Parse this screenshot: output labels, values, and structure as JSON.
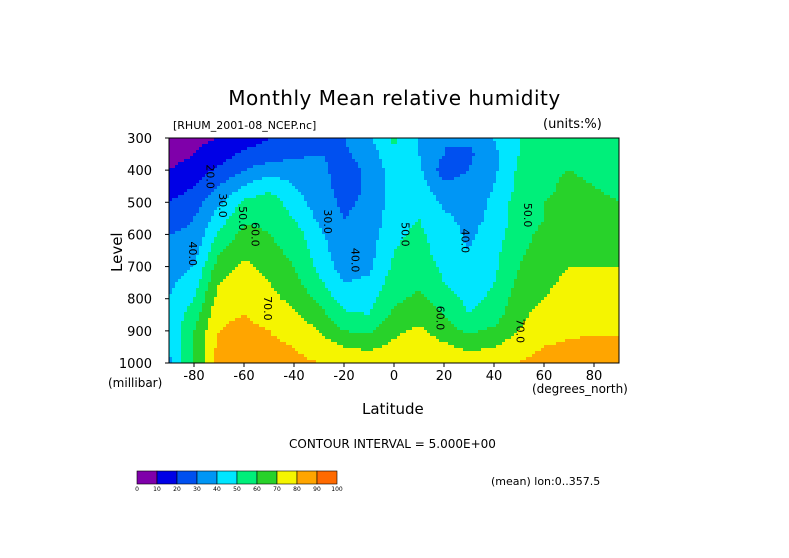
{
  "title": "Monthly Mean relative humidity",
  "file_label": "[RHUM_2001-08_NCEP.nc]",
  "units_label": "(units:%)",
  "contour_interval": "CONTOUR INTERVAL = 5.000E+00",
  "mean_label": "(mean) lon:0..357.5",
  "chart_data": {
    "type": "heatmap",
    "title": "Monthly Mean relative humidity",
    "xlabel": "Latitude",
    "ylabel": "Level",
    "x_unit": "(degrees_north)",
    "y_unit": "(millibar)",
    "xlim": [
      -90,
      90
    ],
    "ylim": [
      1000,
      300
    ],
    "x_ticks": [
      -80,
      -60,
      -40,
      -20,
      0,
      20,
      40,
      60,
      80
    ],
    "x_tick_labels": [
      "-80",
      "-60",
      "-40",
      "-20",
      "0",
      "20",
      "40",
      "60",
      "80"
    ],
    "y_ticks": [
      300,
      400,
      500,
      600,
      700,
      800,
      900,
      1000
    ],
    "y_tick_labels": [
      "300",
      "400",
      "500",
      "600",
      "700",
      "800",
      "900",
      "1000"
    ],
    "x": [
      -90,
      -80,
      -70,
      -60,
      -50,
      -40,
      -30,
      -20,
      -10,
      0,
      10,
      20,
      30,
      40,
      50,
      60,
      70,
      80,
      90
    ],
    "y": [
      300,
      350,
      400,
      450,
      500,
      550,
      600,
      650,
      700,
      750,
      800,
      850,
      900,
      950,
      1000
    ],
    "z": [
      [
        5,
        8,
        10,
        15,
        20,
        25,
        28,
        30,
        38,
        52,
        40,
        30,
        32,
        40,
        50,
        55,
        58,
        55,
        52
      ],
      [
        5,
        10,
        15,
        22,
        25,
        28,
        30,
        28,
        35,
        48,
        40,
        30,
        28,
        38,
        50,
        55,
        58,
        58,
        55
      ],
      [
        10,
        15,
        22,
        30,
        35,
        35,
        33,
        25,
        32,
        45,
        42,
        25,
        30,
        38,
        52,
        58,
        60,
        58,
        55
      ],
      [
        15,
        20,
        30,
        40,
        48,
        40,
        35,
        25,
        32,
        45,
        45,
        32,
        35,
        40,
        52,
        58,
        62,
        60,
        58
      ],
      [
        20,
        25,
        38,
        52,
        55,
        45,
        35,
        28,
        32,
        45,
        48,
        38,
        35,
        42,
        55,
        60,
        62,
        62,
        60
      ],
      [
        25,
        30,
        45,
        58,
        58,
        50,
        38,
        30,
        33,
        46,
        50,
        42,
        37,
        42,
        55,
        60,
        63,
        63,
        62
      ],
      [
        30,
        32,
        52,
        63,
        60,
        55,
        42,
        32,
        35,
        48,
        52,
        45,
        38,
        45,
        57,
        62,
        65,
        65,
        65
      ],
      [
        32,
        35,
        58,
        68,
        63,
        57,
        45,
        33,
        36,
        50,
        54,
        45,
        40,
        47,
        58,
        64,
        67,
        67,
        68
      ],
      [
        35,
        40,
        65,
        72,
        67,
        60,
        48,
        35,
        38,
        52,
        56,
        48,
        42,
        48,
        60,
        66,
        70,
        70,
        70
      ],
      [
        38,
        45,
        70,
        75,
        70,
        63,
        52,
        40,
        42,
        55,
        58,
        50,
        44,
        50,
        62,
        68,
        72,
        72,
        72
      ],
      [
        40,
        50,
        74,
        77,
        73,
        67,
        58,
        45,
        46,
        58,
        62,
        55,
        47,
        52,
        65,
        70,
        74,
        74,
        75
      ],
      [
        42,
        55,
        78,
        80,
        76,
        72,
        64,
        52,
        50,
        62,
        66,
        60,
        50,
        55,
        68,
        73,
        76,
        76,
        76
      ],
      [
        42,
        60,
        80,
        83,
        80,
        76,
        70,
        60,
        58,
        68,
        72,
        65,
        58,
        62,
        70,
        76,
        78,
        78,
        78
      ],
      [
        40,
        62,
        83,
        86,
        82,
        80,
        76,
        70,
        68,
        72,
        76,
        72,
        68,
        70,
        76,
        80,
        82,
        84,
        85
      ],
      [
        38,
        60,
        85,
        88,
        84,
        82,
        80,
        78,
        76,
        76,
        78,
        76,
        74,
        76,
        80,
        84,
        86,
        88,
        90
      ]
    ],
    "contour_labels": [
      {
        "text": "20.0",
        "lon": -75,
        "lev": 420
      },
      {
        "text": "30.0",
        "lon": -70,
        "lev": 510
      },
      {
        "text": "50.0",
        "lon": -62,
        "lev": 550
      },
      {
        "text": "40.0",
        "lon": -82,
        "lev": 660
      },
      {
        "text": "60.0",
        "lon": -57,
        "lev": 600
      },
      {
        "text": "70.0",
        "lon": -52,
        "lev": 830
      },
      {
        "text": "30.0",
        "lon": -28,
        "lev": 560
      },
      {
        "text": "40.0",
        "lon": -17,
        "lev": 680
      },
      {
        "text": "50.0",
        "lon": 3,
        "lev": 600
      },
      {
        "text": "60.0",
        "lon": 17,
        "lev": 860
      },
      {
        "text": "40.0",
        "lon": 27,
        "lev": 620
      },
      {
        "text": "50.0",
        "lon": 52,
        "lev": 540
      },
      {
        "text": "70.0",
        "lon": 49,
        "lev": 900
      }
    ],
    "levels": [
      0,
      10,
      20,
      30,
      40,
      50,
      60,
      70,
      80,
      90,
      100
    ],
    "colorbar_labels": [
      "0",
      "10",
      "20",
      "30",
      "40",
      "50",
      "60",
      "70",
      "80",
      "90",
      "100"
    ],
    "colors": [
      "#7f00aa",
      "#0000e6",
      "#0050f0",
      "#0096f5",
      "#00e6ff",
      "#00ef7a",
      "#28d22a",
      "#f5f500",
      "#ffa500",
      "#ff6a00",
      "#ff0000"
    ]
  }
}
